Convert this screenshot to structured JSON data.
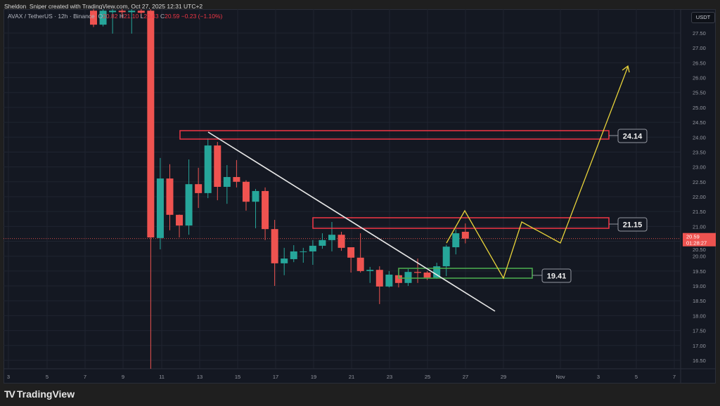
{
  "header": {
    "credit": "Sheldon_Sniper created with TradingView.com, Oct 27, 2025 12:31 UTC+2",
    "symbol": "AVAX / TetherUS · 12h · Binance",
    "ohlc": {
      "o_label": "O",
      "o": "20.82",
      "h_label": "H",
      "h": "21.10",
      "l_label": "L",
      "l": "20.43",
      "c_label": "C",
      "c": "20.59",
      "change": "−0.23 (−1.10%)"
    }
  },
  "price_axis": {
    "currency": "USDT",
    "ticks": [
      "27.50",
      "27.00",
      "26.50",
      "26.00",
      "25.50",
      "25.00",
      "24.50",
      "24.00",
      "23.50",
      "23.00",
      "22.50",
      "22.00",
      "21.50",
      "21.00",
      "20.50",
      "20.00",
      "19.50",
      "19.00",
      "18.50",
      "18.00",
      "17.50",
      "17.00",
      "16.50"
    ],
    "current_price": "20.59",
    "countdown": "01:28:27"
  },
  "time_axis": {
    "ticks": [
      "3",
      "5",
      "7",
      "9",
      "11",
      "13",
      "15",
      "17",
      "19",
      "21",
      "23",
      "25",
      "27",
      "29",
      "Nov",
      "3",
      "5",
      "7"
    ]
  },
  "annotations": {
    "resistance_high": "24.14",
    "resistance_mid": "21.15",
    "support": "19.41"
  },
  "colors": {
    "up": "#26a69a",
    "down": "#ef5350",
    "resistance": "#f23645",
    "support": "#4caf50",
    "projection": "#e8d33a",
    "trendline": "#ffffff",
    "background": "#141822"
  },
  "chart_data": {
    "type": "candlestick",
    "interval": "12h",
    "ylim": [
      16.3,
      28.3
    ],
    "candles": [
      [
        28.25,
        28.3,
        27.7,
        27.78
      ],
      [
        27.78,
        28.3,
        27.72,
        28.25
      ],
      [
        28.2,
        28.3,
        27.48,
        28.25
      ],
      [
        28.25,
        28.3,
        28.0,
        28.2
      ],
      [
        28.2,
        28.3,
        27.48,
        28.25
      ],
      [
        28.25,
        28.3,
        28.0,
        28.18
      ],
      [
        28.25,
        28.3,
        16.17,
        20.63
      ],
      [
        20.61,
        23.3,
        20.23,
        22.61
      ],
      [
        22.61,
        23.09,
        20.87,
        21.39
      ],
      [
        21.39,
        21.4,
        20.63,
        21.03
      ],
      [
        21.03,
        23.25,
        20.72,
        22.42
      ],
      [
        22.42,
        22.97,
        21.62,
        22.12
      ],
      [
        22.12,
        23.96,
        21.95,
        23.72
      ],
      [
        23.72,
        23.84,
        21.88,
        22.33
      ],
      [
        22.33,
        23.06,
        21.76,
        22.66
      ],
      [
        22.66,
        23.23,
        22.31,
        22.5
      ],
      [
        22.5,
        22.55,
        21.53,
        21.83
      ],
      [
        21.83,
        22.26,
        20.94,
        22.19
      ],
      [
        22.19,
        22.31,
        20.54,
        20.91
      ],
      [
        20.91,
        21.22,
        19.0,
        19.76
      ],
      [
        19.76,
        20.28,
        19.36,
        19.92
      ],
      [
        19.9,
        20.37,
        19.8,
        20.16
      ],
      [
        20.15,
        20.28,
        19.78,
        20.16
      ],
      [
        20.16,
        20.54,
        19.71,
        20.35
      ],
      [
        20.35,
        20.77,
        20.25,
        20.54
      ],
      [
        20.54,
        21.15,
        20.16,
        20.72
      ],
      [
        20.72,
        20.82,
        20.18,
        20.28
      ],
      [
        20.3,
        20.3,
        19.45,
        19.95
      ],
      [
        19.95,
        20.77,
        19.45,
        19.5
      ],
      [
        19.5,
        19.64,
        19.1,
        19.54
      ],
      [
        19.54,
        19.66,
        18.39,
        18.98
      ],
      [
        18.98,
        19.5,
        18.95,
        19.38
      ],
      [
        19.36,
        19.6,
        18.95,
        19.1
      ],
      [
        19.1,
        19.57,
        19.0,
        19.47
      ],
      [
        19.47,
        19.92,
        19.1,
        19.44
      ],
      [
        19.45,
        19.5,
        19.2,
        19.28
      ],
      [
        19.28,
        19.78,
        19.24,
        19.66
      ],
      [
        19.66,
        20.38,
        19.33,
        20.32
      ],
      [
        20.3,
        20.9,
        20.06,
        20.77
      ],
      [
        20.82,
        21.1,
        20.43,
        20.59
      ]
    ]
  }
}
